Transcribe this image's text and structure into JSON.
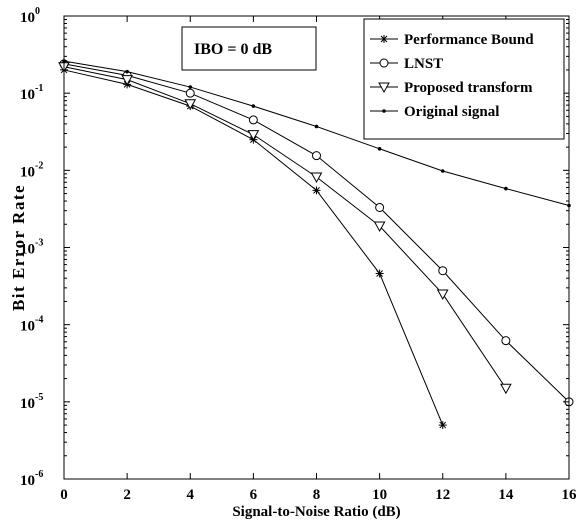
{
  "chart_data": {
    "type": "line",
    "xlabel": "Signal-to-Noise Ratio (dB)",
    "ylabel": "Bit Error Rate",
    "xlim": [
      0,
      16
    ],
    "ylim": [
      1e-06,
      1
    ],
    "yscale": "log",
    "x_ticks": [
      "0",
      "2",
      "4",
      "6",
      "8",
      "10",
      "12",
      "14",
      "16"
    ],
    "y_ticks": [
      {
        "base": "10",
        "exp": "-6"
      },
      {
        "base": "10",
        "exp": "-5"
      },
      {
        "base": "10",
        "exp": "-4"
      },
      {
        "base": "10",
        "exp": "-3"
      },
      {
        "base": "10",
        "exp": "-2"
      },
      {
        "base": "10",
        "exp": "-1"
      },
      {
        "base": "10",
        "exp": "0"
      }
    ],
    "annotation": "IBO = 0 dB",
    "legend_position": "top-right",
    "grid": false,
    "series": [
      {
        "name": "Performance Bound",
        "marker": "star",
        "x": [
          0,
          2,
          4,
          6,
          8,
          10,
          12
        ],
        "y": [
          0.2,
          0.13,
          0.068,
          0.025,
          0.0055,
          0.00046,
          5e-06
        ]
      },
      {
        "name": "LNST",
        "marker": "circle",
        "x": [
          0,
          2,
          4,
          6,
          8,
          10,
          12,
          14,
          16
        ],
        "y": [
          0.24,
          0.17,
          0.1,
          0.045,
          0.0155,
          0.0033,
          0.0005,
          6.2e-05,
          1e-05
        ]
      },
      {
        "name": "Proposed transform",
        "marker": "triangle-down",
        "x": [
          0,
          2,
          4,
          6,
          8,
          10,
          12,
          14
        ],
        "y": [
          0.22,
          0.15,
          0.073,
          0.029,
          0.0082,
          0.0019,
          0.00025,
          1.5e-05
        ]
      },
      {
        "name": "Original signal",
        "marker": "dot",
        "x": [
          0,
          2,
          4,
          6,
          8,
          10,
          12,
          14,
          16
        ],
        "y": [
          0.26,
          0.19,
          0.12,
          0.068,
          0.037,
          0.019,
          0.0098,
          0.0058,
          0.0035
        ]
      }
    ]
  }
}
